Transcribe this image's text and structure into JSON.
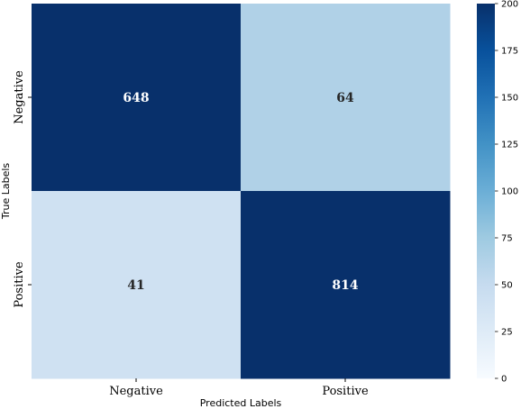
{
  "chart_data": {
    "type": "heatmap",
    "xlabel": "Predicted Labels",
    "ylabel": "True Labels",
    "x_categories": [
      "Negative",
      "Positive"
    ],
    "y_categories": [
      "Negative",
      "Positive"
    ],
    "values": [
      [
        648,
        64
      ],
      [
        41,
        814
      ]
    ],
    "colorbar": {
      "min": 0,
      "max": 200,
      "ticks": [
        0,
        25,
        50,
        75,
        100,
        125,
        150,
        175,
        200
      ],
      "colormap": "Blues",
      "color_low": "#f7fbff",
      "color_high": "#08306b"
    },
    "annotation_colors": {
      "on_dark": "#ffffff",
      "on_light": "#262626"
    }
  }
}
